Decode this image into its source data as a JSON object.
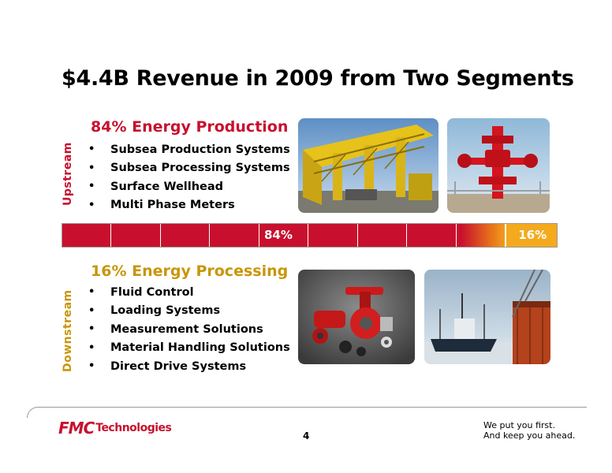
{
  "title": "$4.4B Revenue in 2009 from Two Segments",
  "upstream": {
    "side_label": "Upstream",
    "heading": "84% Energy Production",
    "items": [
      {
        "bullet": "•",
        "label": "Subsea Production Systems"
      },
      {
        "bullet": "•",
        "label": "Subsea Processing Systems"
      },
      {
        "bullet": "•",
        "label": "Surface Wellhead"
      },
      {
        "bullet": "•",
        "label": "Multi Phase Meters"
      }
    ]
  },
  "downstream": {
    "side_label": "Downstream",
    "heading": "16% Energy Processing",
    "items": [
      {
        "bullet": "•",
        "label": "Fluid Control"
      },
      {
        "bullet": "•",
        "label": "Loading Systems"
      },
      {
        "bullet": "•",
        "label": "Measurement Solutions"
      },
      {
        "bullet": "•",
        "label": "Material Handling Solutions"
      },
      {
        "bullet": "•",
        "label": "Direct Drive Systems"
      }
    ]
  },
  "revenue_split": {
    "energy_production_pct": 84,
    "energy_processing_pct": 16,
    "energy_production_label": "84%",
    "energy_processing_label": "16%"
  },
  "colors": {
    "production_red": "#c8102e",
    "processing_gold": "#f4aa1c",
    "downstream_text": "#c8960a"
  },
  "footer": {
    "logo_fmc": "FMC",
    "logo_technologies": "Technologies",
    "page_number": "4",
    "tagline_line1": "We put you first.",
    "tagline_line2": "And keep you ahead."
  }
}
